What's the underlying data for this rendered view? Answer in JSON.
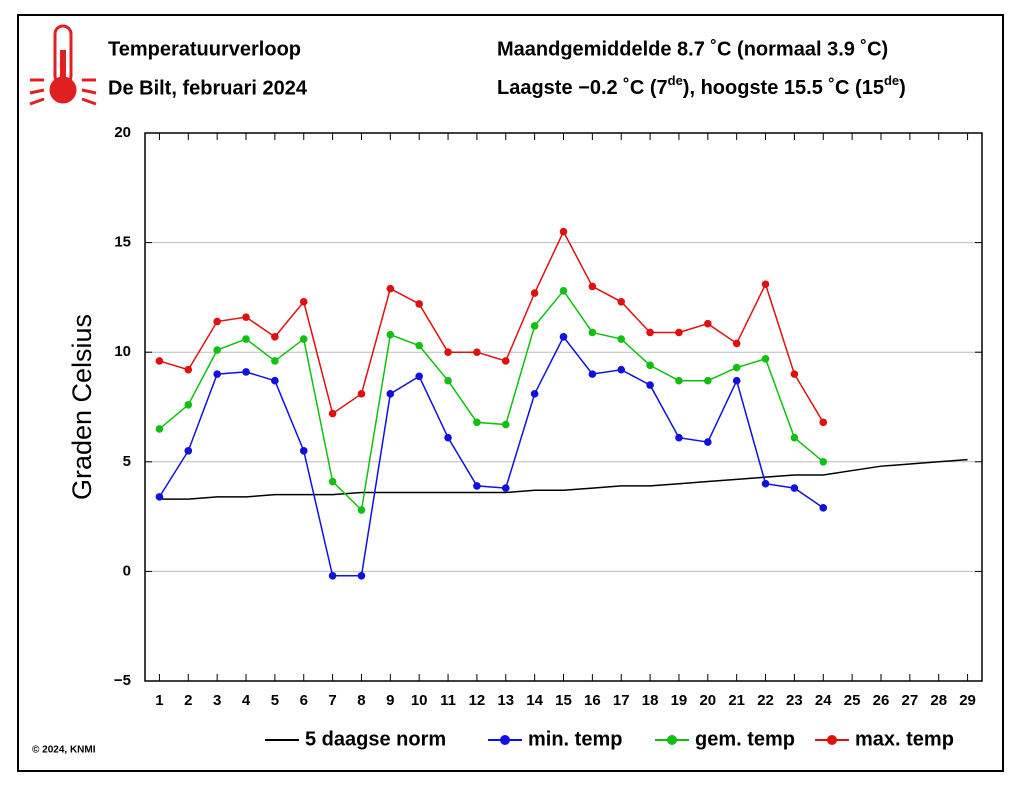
{
  "chart_data": {
    "type": "line",
    "title": "Temperatuurverloop",
    "subtitle": "De Bilt, februari 2024",
    "summary": "Maandgemiddelde 8.7 ˚C (normaal 3.9 ˚C)",
    "extremes": [
      "Laagste −0.2 ˚C (7",
      "de",
      "), hoogste 15.5 ˚C (15",
      "de",
      ")"
    ],
    "ylabel": "Graden Celsius",
    "credit": "© 2024, KNMI",
    "x": [
      1,
      2,
      3,
      4,
      5,
      6,
      7,
      8,
      9,
      10,
      11,
      12,
      13,
      14,
      15,
      16,
      17,
      18,
      19,
      20,
      21,
      22,
      23,
      24,
      25,
      26,
      27,
      28,
      29
    ],
    "xlim": [
      0.5,
      29.5
    ],
    "xticks": [
      1,
      2,
      3,
      4,
      5,
      6,
      7,
      8,
      9,
      10,
      11,
      12,
      13,
      14,
      15,
      16,
      17,
      18,
      19,
      20,
      21,
      22,
      23,
      24,
      25,
      26,
      27,
      28,
      29
    ],
    "ylim": [
      -5,
      20
    ],
    "yticks": [
      {
        "value": -5,
        "label": "−5"
      },
      0,
      5,
      10,
      15,
      20
    ],
    "grid": true,
    "legend": "bottom",
    "series": [
      {
        "name": "5 daagse norm",
        "color": "#000000",
        "marker": "none",
        "values": [
          3.3,
          3.3,
          3.4,
          3.4,
          3.5,
          3.5,
          3.5,
          3.6,
          3.6,
          3.6,
          3.6,
          3.6,
          3.6,
          3.7,
          3.7,
          3.8,
          3.9,
          3.9,
          4.0,
          4.1,
          4.2,
          4.3,
          4.4,
          4.4,
          4.6,
          4.8,
          4.9,
          5.0,
          5.1
        ]
      },
      {
        "name": "min. temp",
        "color": "#1010e0",
        "marker": "circle",
        "values": [
          3.4,
          5.5,
          9.0,
          9.1,
          8.7,
          5.5,
          -0.2,
          -0.2,
          8.1,
          8.9,
          6.1,
          3.9,
          3.8,
          8.1,
          10.7,
          9.0,
          9.2,
          8.5,
          6.1,
          5.9,
          8.7,
          4.0,
          3.8,
          2.9,
          null,
          null,
          null,
          null,
          null
        ]
      },
      {
        "name": "gem. temp",
        "color": "#10c010",
        "marker": "circle",
        "values": [
          6.5,
          7.6,
          10.1,
          10.6,
          9.6,
          10.6,
          4.1,
          2.8,
          10.8,
          10.3,
          8.7,
          6.8,
          6.7,
          11.2,
          12.8,
          10.9,
          10.6,
          9.4,
          8.7,
          8.7,
          9.3,
          9.7,
          6.1,
          5.0,
          null,
          null,
          null,
          null,
          null
        ]
      },
      {
        "name": "max. temp",
        "color": "#e01010",
        "marker": "circle",
        "values": [
          9.6,
          9.2,
          11.4,
          11.6,
          10.7,
          12.3,
          7.2,
          8.1,
          12.9,
          12.2,
          10.0,
          10.0,
          9.6,
          12.7,
          15.5,
          13.0,
          12.3,
          10.9,
          10.9,
          11.3,
          10.4,
          13.1,
          9.0,
          6.8,
          null,
          null,
          null,
          null,
          null
        ]
      }
    ]
  }
}
